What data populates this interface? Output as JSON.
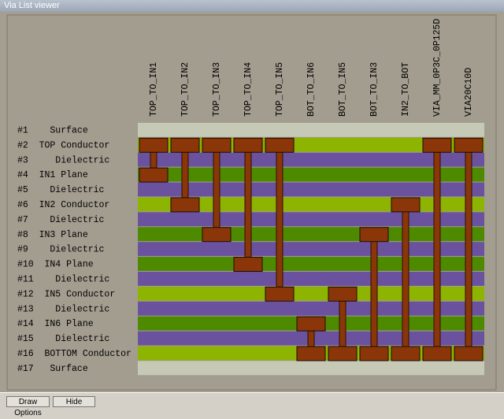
{
  "window": {
    "title": "Via List viewer"
  },
  "vias": [
    {
      "name": "TOP_TO_IN1",
      "from": 2,
      "to": 4
    },
    {
      "name": "TOP_TO_IN2",
      "from": 2,
      "to": 6
    },
    {
      "name": "TOP_TO_IN3",
      "from": 2,
      "to": 8
    },
    {
      "name": "TOP_TO_IN4",
      "from": 2,
      "to": 10
    },
    {
      "name": "TOP_TO_IN5",
      "from": 2,
      "to": 12
    },
    {
      "name": "BOT_TO_IN6",
      "from": 14,
      "to": 16
    },
    {
      "name": "BOT_TO_IN5",
      "from": 12,
      "to": 16
    },
    {
      "name": "BOT_TO_IN3",
      "from": 8,
      "to": 16
    },
    {
      "name": "IN2_TO_BOT",
      "from": 6,
      "to": 16
    },
    {
      "name": "VIA_MM_0P3C_0P125D",
      "from": 2,
      "to": 16
    },
    {
      "name": "VIA20C10D",
      "from": 2,
      "to": 16
    }
  ],
  "layers": [
    {
      "label": "#1    Surface",
      "color": "#c6c9b6"
    },
    {
      "label": "#2  TOP Conductor",
      "color": "#8cb400"
    },
    {
      "label": "#3     Dielectric",
      "color": "#6b529e"
    },
    {
      "label": "#4  IN1 Plane",
      "color": "#4d8a00"
    },
    {
      "label": "#5    Dielectric",
      "color": "#6b529e"
    },
    {
      "label": "#6  IN2 Conductor",
      "color": "#8cb400"
    },
    {
      "label": "#7    Dielectric",
      "color": "#6b529e"
    },
    {
      "label": "#8  IN3 Plane",
      "color": "#4d8a00"
    },
    {
      "label": "#9    Dielectric",
      "color": "#6b529e"
    },
    {
      "label": "#10  IN4 Plane",
      "color": "#4d8a00"
    },
    {
      "label": "#11    Dielectric",
      "color": "#6b529e"
    },
    {
      "label": "#12  IN5 Conductor",
      "color": "#8cb400"
    },
    {
      "label": "#13    Dielectric",
      "color": "#6b529e"
    },
    {
      "label": "#14  IN6 Plane",
      "color": "#4d8a00"
    },
    {
      "label": "#15    Dielectric",
      "color": "#6b529e"
    },
    {
      "label": "#16  BOTTOM Conductor",
      "color": "#8cb400"
    },
    {
      "label": "#17   Surface",
      "color": "#c6c9b6"
    }
  ],
  "buttons": [
    "Draw Options",
    "Hide"
  ]
}
